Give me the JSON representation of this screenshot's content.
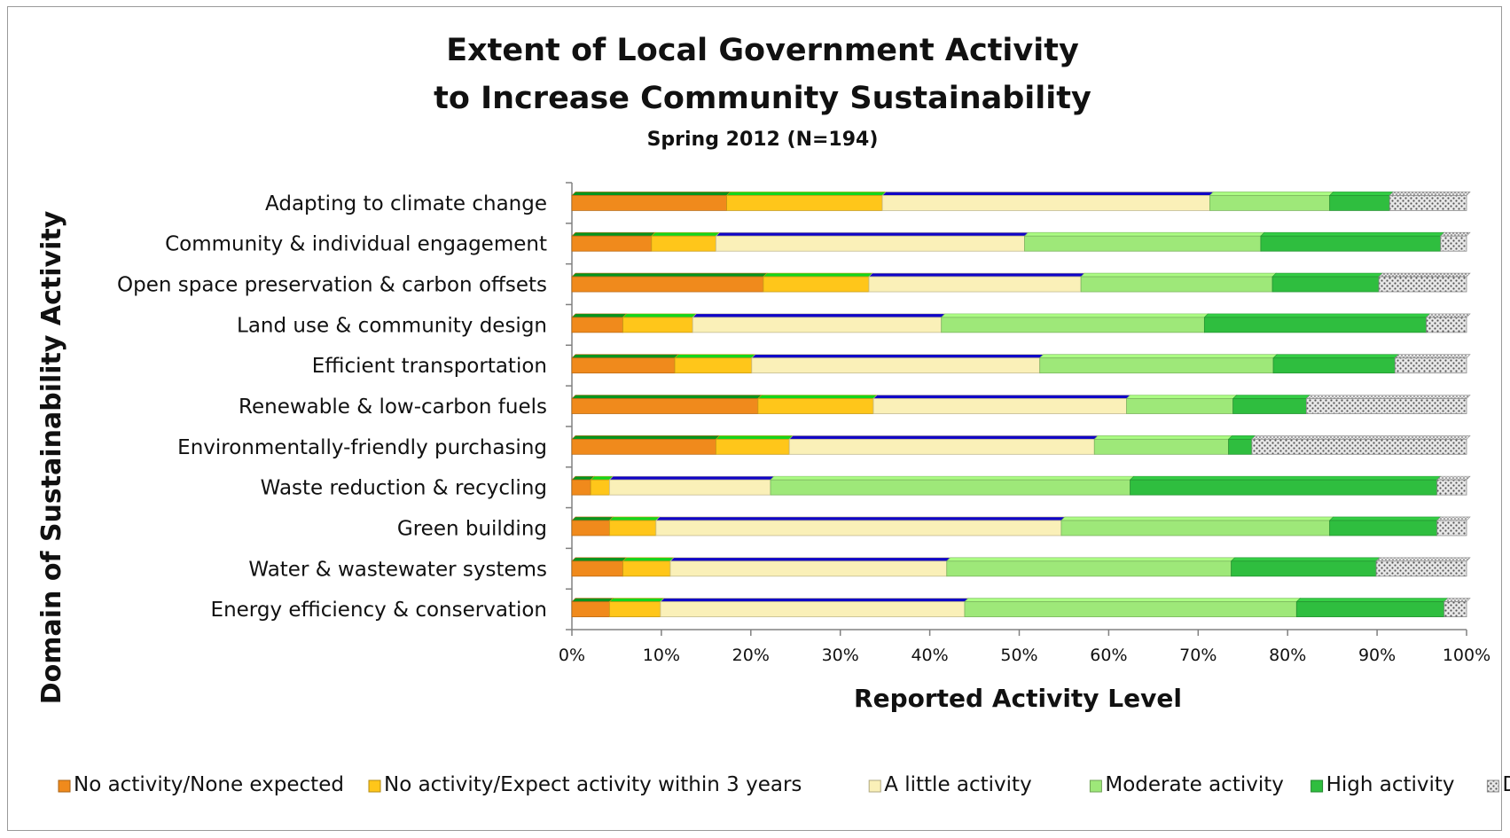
{
  "chart_data": {
    "type": "bar",
    "orientation": "horizontal",
    "stacked": true,
    "percent_stacked": true,
    "title": "Extent of Local Government Activity",
    "title_line2": "to Increase Community Sustainability",
    "subtitle": "Spring 2012 (N=194)",
    "xlabel": "Reported Activity Level",
    "ylabel": "Domain of Sustainability Activity",
    "xlim": [
      0,
      100
    ],
    "xticks": [
      "0%",
      "10%",
      "20%",
      "30%",
      "40%",
      "50%",
      "60%",
      "70%",
      "80%",
      "90%",
      "100%"
    ],
    "grid": false,
    "legend_position": "bottom",
    "categories": [
      "Adapting to climate change",
      "Community & individual engagement",
      "Open space preservation & carbon offsets",
      "Land use & community design",
      "Efficient transportation",
      "Renewable & low-carbon fuels",
      "Environmentally-friendly purchasing",
      "Waste reduction & recycling",
      "Green building",
      "Water & wastewater systems",
      "Energy efficiency & conservation"
    ],
    "series": [
      {
        "name": "No activity/None expected",
        "color": "#f08a1c",
        "values": [
          17.3,
          8.9,
          21.4,
          5.7,
          11.5,
          20.8,
          16.1,
          2.1,
          4.2,
          5.7,
          4.2
        ]
      },
      {
        "name": "No activity/Expect activity within 3 years",
        "color": "#ffc61a",
        "values": [
          17.4,
          7.2,
          11.8,
          7.8,
          8.6,
          12.9,
          8.2,
          2.1,
          5.2,
          5.3,
          5.7
        ]
      },
      {
        "name": "A little activity",
        "color": "#faf0b8",
        "values": [
          36.6,
          34.5,
          23.7,
          27.8,
          32.2,
          28.3,
          34.1,
          18.0,
          45.3,
          30.9,
          34.0
        ]
      },
      {
        "name": "Moderate activity",
        "color": "#9ee879",
        "values": [
          13.4,
          26.4,
          21.4,
          29.4,
          26.1,
          11.9,
          15.0,
          40.2,
          30.0,
          31.8,
          37.1
        ]
      },
      {
        "name": "High activity",
        "color": "#2fbe3f",
        "values": [
          6.7,
          20.1,
          11.9,
          24.8,
          13.6,
          8.2,
          2.6,
          34.3,
          12.0,
          16.2,
          16.5
        ]
      },
      {
        "name": "Don't know",
        "color": "#d6d6d6",
        "values": [
          8.6,
          2.9,
          9.8,
          4.5,
          8.0,
          17.9,
          24.0,
          3.3,
          3.3,
          10.1,
          2.5
        ]
      }
    ]
  }
}
